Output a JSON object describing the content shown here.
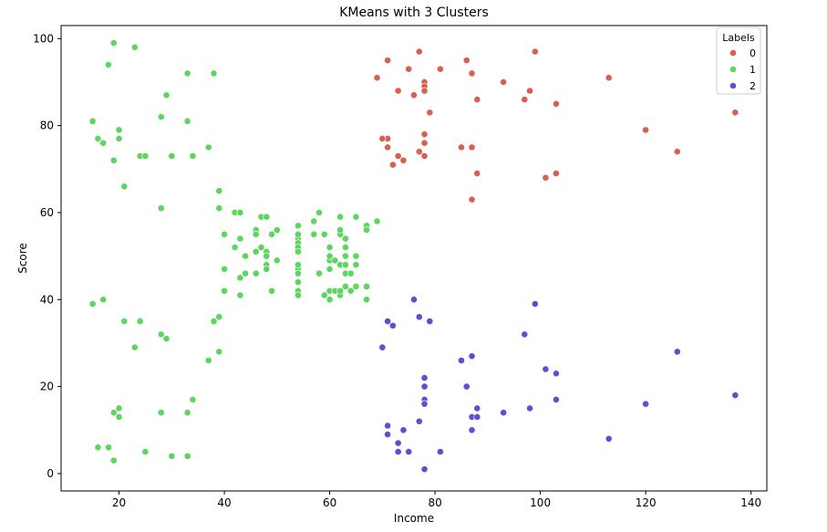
{
  "chart_data": {
    "type": "scatter",
    "title": "KMeans with 3 Clusters",
    "xlabel": "Income",
    "ylabel": "Score",
    "xlim": [
      9,
      143
    ],
    "ylim": [
      -4,
      103
    ],
    "xticks": [
      20,
      40,
      60,
      80,
      100,
      120,
      140
    ],
    "yticks": [
      0,
      20,
      40,
      60,
      80,
      100
    ],
    "grid": false,
    "legend": {
      "title": "Labels",
      "placement": "top-right"
    },
    "series": [
      {
        "name": "0",
        "color": "#d9604f",
        "points": [
          [
            69,
            91
          ],
          [
            71,
            95
          ],
          [
            71,
            77
          ],
          [
            70,
            77
          ],
          [
            71,
            75
          ],
          [
            72,
            71
          ],
          [
            73,
            73
          ],
          [
            73,
            88
          ],
          [
            74,
            72
          ],
          [
            75,
            93
          ],
          [
            76,
            87
          ],
          [
            77,
            97
          ],
          [
            77,
            74
          ],
          [
            78,
            90
          ],
          [
            78,
            89
          ],
          [
            78,
            88
          ],
          [
            78,
            78
          ],
          [
            78,
            76
          ],
          [
            78,
            73
          ],
          [
            79,
            83
          ],
          [
            81,
            93
          ],
          [
            85,
            75
          ],
          [
            86,
            95
          ],
          [
            87,
            92
          ],
          [
            87,
            75
          ],
          [
            87,
            63
          ],
          [
            88,
            86
          ],
          [
            88,
            69
          ],
          [
            93,
            90
          ],
          [
            97,
            86
          ],
          [
            98,
            88
          ],
          [
            99,
            97
          ],
          [
            101,
            68
          ],
          [
            103,
            85
          ],
          [
            103,
            69
          ],
          [
            113,
            91
          ],
          [
            120,
            79
          ],
          [
            126,
            74
          ],
          [
            137,
            83
          ]
        ]
      },
      {
        "name": "1",
        "color": "#5cd65c",
        "points": [
          [
            15,
            39
          ],
          [
            15,
            81
          ],
          [
            16,
            6
          ],
          [
            16,
            77
          ],
          [
            17,
            40
          ],
          [
            17,
            76
          ],
          [
            18,
            6
          ],
          [
            18,
            94
          ],
          [
            19,
            3
          ],
          [
            19,
            72
          ],
          [
            19,
            14
          ],
          [
            19,
            99
          ],
          [
            20,
            15
          ],
          [
            20,
            77
          ],
          [
            20,
            13
          ],
          [
            20,
            79
          ],
          [
            21,
            35
          ],
          [
            21,
            66
          ],
          [
            23,
            29
          ],
          [
            23,
            98
          ],
          [
            24,
            35
          ],
          [
            24,
            73
          ],
          [
            25,
            5
          ],
          [
            25,
            73
          ],
          [
            28,
            14
          ],
          [
            28,
            82
          ],
          [
            28,
            32
          ],
          [
            28,
            61
          ],
          [
            29,
            31
          ],
          [
            29,
            87
          ],
          [
            30,
            4
          ],
          [
            30,
            73
          ],
          [
            33,
            4
          ],
          [
            33,
            92
          ],
          [
            33,
            14
          ],
          [
            33,
            81
          ],
          [
            34,
            17
          ],
          [
            34,
            73
          ],
          [
            37,
            26
          ],
          [
            37,
            75
          ],
          [
            38,
            35
          ],
          [
            38,
            92
          ],
          [
            39,
            36
          ],
          [
            39,
            61
          ],
          [
            39,
            28
          ],
          [
            39,
            65
          ],
          [
            40,
            55
          ],
          [
            40,
            47
          ],
          [
            40,
            42
          ],
          [
            42,
            52
          ],
          [
            42,
            60
          ],
          [
            43,
            54
          ],
          [
            43,
            60
          ],
          [
            43,
            45
          ],
          [
            43,
            41
          ],
          [
            44,
            50
          ],
          [
            44,
            46
          ],
          [
            46,
            51
          ],
          [
            46,
            46
          ],
          [
            46,
            56
          ],
          [
            46,
            55
          ],
          [
            47,
            52
          ],
          [
            47,
            59
          ],
          [
            48,
            51
          ],
          [
            48,
            59
          ],
          [
            48,
            50
          ],
          [
            48,
            48
          ],
          [
            48,
            47
          ],
          [
            49,
            55
          ],
          [
            49,
            42
          ],
          [
            50,
            49
          ],
          [
            50,
            56
          ],
          [
            54,
            47
          ],
          [
            54,
            54
          ],
          [
            54,
            53
          ],
          [
            54,
            48
          ],
          [
            54,
            52
          ],
          [
            54,
            42
          ],
          [
            54,
            51
          ],
          [
            54,
            55
          ],
          [
            54,
            41
          ],
          [
            54,
            44
          ],
          [
            54,
            57
          ],
          [
            54,
            46
          ],
          [
            57,
            58
          ],
          [
            57,
            55
          ],
          [
            58,
            60
          ],
          [
            58,
            46
          ],
          [
            59,
            55
          ],
          [
            59,
            41
          ],
          [
            60,
            49
          ],
          [
            60,
            40
          ],
          [
            60,
            42
          ],
          [
            60,
            52
          ],
          [
            60,
            47
          ],
          [
            60,
            50
          ],
          [
            61,
            42
          ],
          [
            61,
            49
          ],
          [
            62,
            41
          ],
          [
            62,
            48
          ],
          [
            62,
            59
          ],
          [
            62,
            55
          ],
          [
            62,
            56
          ],
          [
            62,
            42
          ],
          [
            63,
            50
          ],
          [
            63,
            46
          ],
          [
            63,
            43
          ],
          [
            63,
            48
          ],
          [
            63,
            52
          ],
          [
            63,
            54
          ],
          [
            64,
            42
          ],
          [
            64,
            46
          ],
          [
            65,
            48
          ],
          [
            65,
            50
          ],
          [
            65,
            43
          ],
          [
            65,
            59
          ],
          [
            67,
            43
          ],
          [
            67,
            57
          ],
          [
            67,
            56
          ],
          [
            67,
            40
          ],
          [
            69,
            58
          ]
        ]
      },
      {
        "name": "2",
        "color": "#5a50d4",
        "points": [
          [
            70,
            29
          ],
          [
            71,
            11
          ],
          [
            71,
            9
          ],
          [
            71,
            35
          ],
          [
            72,
            34
          ],
          [
            73,
            5
          ],
          [
            73,
            7
          ],
          [
            74,
            10
          ],
          [
            75,
            5
          ],
          [
            76,
            40
          ],
          [
            77,
            12
          ],
          [
            77,
            36
          ],
          [
            78,
            22
          ],
          [
            78,
            17
          ],
          [
            78,
            20
          ],
          [
            78,
            16
          ],
          [
            78,
            1
          ],
          [
            79,
            35
          ],
          [
            81,
            5
          ],
          [
            85,
            26
          ],
          [
            86,
            20
          ],
          [
            87,
            27
          ],
          [
            87,
            13
          ],
          [
            87,
            10
          ],
          [
            88,
            13
          ],
          [
            88,
            15
          ],
          [
            93,
            14
          ],
          [
            97,
            32
          ],
          [
            98,
            15
          ],
          [
            99,
            39
          ],
          [
            101,
            24
          ],
          [
            103,
            17
          ],
          [
            103,
            23
          ],
          [
            113,
            8
          ],
          [
            120,
            16
          ],
          [
            126,
            28
          ],
          [
            137,
            18
          ]
        ]
      }
    ]
  }
}
